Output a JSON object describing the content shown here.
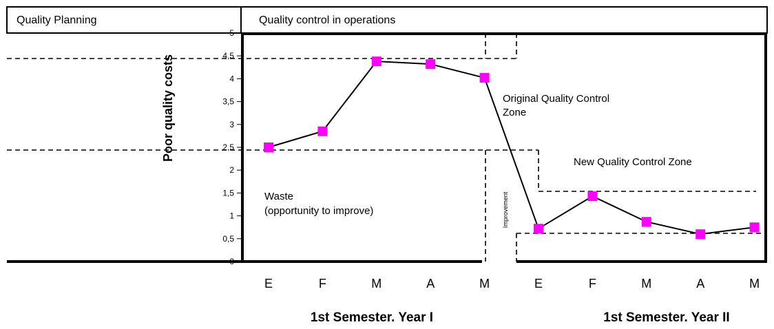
{
  "chart_data": {
    "type": "line",
    "header": [
      "Quality Planning",
      "Quality control in operations"
    ],
    "ylabel": "Poor quality costs",
    "categories": [
      "E",
      "F",
      "M",
      "A",
      "M",
      "E",
      "F",
      "M",
      "A",
      "M"
    ],
    "series": [
      {
        "name": "Poor quality costs",
        "color": "#ff00ff",
        "values": [
          2.5,
          2.85,
          4.38,
          4.32,
          4.02,
          0.72,
          1.43,
          0.87,
          0.6,
          0.75
        ]
      }
    ],
    "ylim": [
      0,
      5
    ],
    "yticks": [
      0,
      {
        "value": 0.5,
        "label": "0,5"
      },
      1,
      {
        "value": 1.5,
        "label": "1,5"
      },
      2,
      {
        "value": 2.5,
        "label": "2,5"
      },
      3,
      {
        "value": 3.5,
        "label": "3,5"
      },
      4,
      {
        "value": 4.5,
        "label": "4,5"
      },
      5
    ],
    "annotations": [
      "Original Quality Control",
      "Zone",
      "New Quality Control Zone",
      "Waste",
      "(opportunity to improve)",
      "Improvement"
    ],
    "period_labels": [
      "1st Semester. Year I",
      "1st Semester. Year II"
    ]
  }
}
